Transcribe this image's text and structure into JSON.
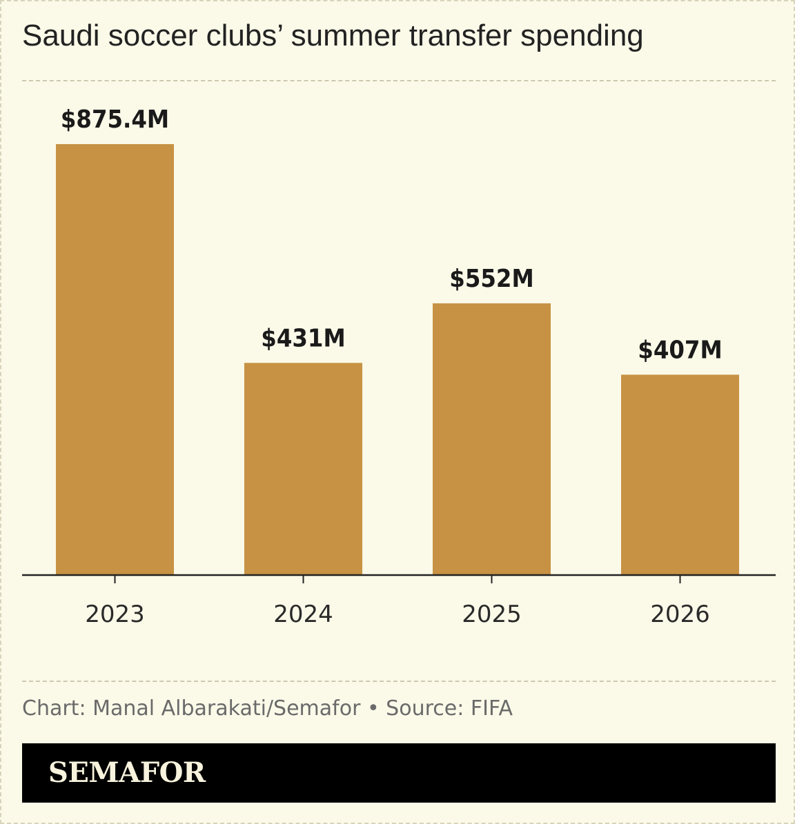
{
  "title": "Saudi soccer clubs’ summer transfer spending",
  "footnote": "Chart: Manal Albarakati/Semafor • Source: FIFA",
  "brand": {
    "logo_text": "SEMAFOR"
  },
  "colors": {
    "bar": "#c79243",
    "background": "#fbf9e8",
    "axis": "#222222"
  },
  "chart_data": {
    "type": "bar",
    "categories": [
      "2023",
      "2024",
      "2025",
      "2026"
    ],
    "values": [
      875.4,
      431,
      552,
      407
    ],
    "data_labels": [
      "$875.4M",
      "$431M",
      "$552M",
      "$407M"
    ],
    "title": "Saudi soccer clubs’ summer transfer spending",
    "ylim": [
      0,
      875.4
    ],
    "grid": false,
    "legend": "none"
  }
}
